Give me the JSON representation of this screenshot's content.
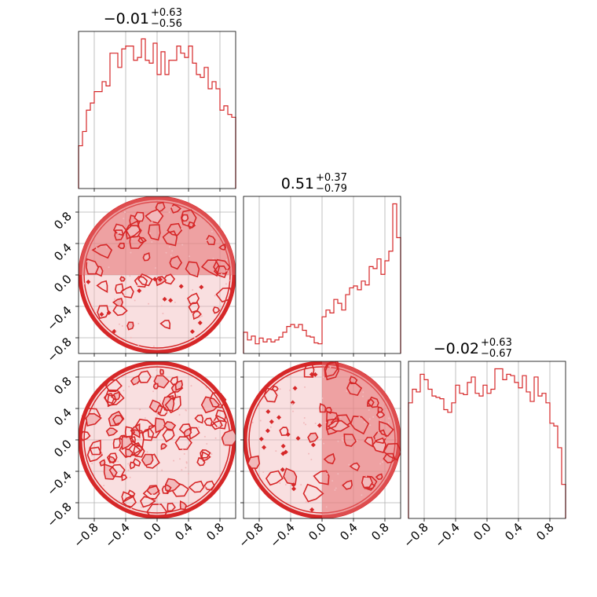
{
  "figure": {
    "colors": {
      "accent": "#d62728",
      "fill_light": "#f2b9bb",
      "fill_mid": "#e56d70",
      "grid": "#b0b0b0"
    }
  },
  "chart_data": {
    "type": "corner",
    "grid": true,
    "variables": [
      {
        "median": "−0.01",
        "plus": "+0.63",
        "minus": "−0.56",
        "range": [
          -1,
          1
        ]
      },
      {
        "median": "0.51",
        "plus": "+0.37",
        "minus": "−0.79",
        "range": [
          -1,
          1
        ]
      },
      {
        "median": "−0.02",
        "plus": "+0.63",
        "minus": "−0.67",
        "range": [
          -1,
          1
        ]
      }
    ],
    "tick_values": [
      -0.8,
      -0.4,
      0.0,
      0.4,
      0.8
    ],
    "tick_labels": [
      "−0.8",
      "−0.4",
      "0.0",
      "0.4",
      "0.8"
    ],
    "histograms": [
      {
        "type": "histogram",
        "variable": 0,
        "bin_edges_range": [
          -1,
          1
        ],
        "counts": [
          0.3,
          0.4,
          0.55,
          0.6,
          0.68,
          0.68,
          0.75,
          0.72,
          0.95,
          0.95,
          0.85,
          0.98,
          1.0,
          1.0,
          0.9,
          0.92,
          1.05,
          0.9,
          0.88,
          1.02,
          0.8,
          0.96,
          0.8,
          0.9,
          0.9,
          1.0,
          0.95,
          0.92,
          1.0,
          0.88,
          0.8,
          0.78,
          0.85,
          0.7,
          0.75,
          0.7,
          0.55,
          0.58,
          0.52,
          0.5
        ]
      },
      {
        "type": "histogram",
        "variable": 1,
        "bin_edges_range": [
          -1,
          1
        ],
        "counts": [
          0.22,
          0.14,
          0.18,
          0.1,
          0.16,
          0.12,
          0.15,
          0.12,
          0.14,
          0.17,
          0.22,
          0.28,
          0.3,
          0.27,
          0.3,
          0.24,
          0.18,
          0.17,
          0.11,
          0.1,
          0.38,
          0.45,
          0.42,
          0.56,
          0.52,
          0.45,
          0.61,
          0.68,
          0.7,
          0.66,
          0.75,
          0.71,
          0.9,
          0.88,
          0.98,
          0.82,
          0.96,
          1.06,
          1.55,
          1.2
        ]
      },
      {
        "type": "histogram",
        "variable": 2,
        "bin_edges_range": [
          -1,
          1
        ],
        "counts": [
          0.85,
          0.95,
          0.93,
          1.06,
          1.02,
          0.95,
          0.9,
          0.89,
          0.88,
          0.8,
          0.78,
          0.85,
          0.98,
          0.92,
          0.91,
          1.0,
          1.04,
          0.92,
          0.9,
          0.98,
          0.92,
          0.95,
          1.1,
          1.1,
          1.02,
          1.06,
          1.05,
          1.0,
          0.96,
          1.05,
          0.93,
          0.86,
          1.04,
          0.9,
          0.92,
          0.85,
          0.7,
          0.68,
          0.52,
          0.25
        ]
      }
    ],
    "contours": [
      {
        "type": "contour",
        "x_variable": 0,
        "y_variable": 1,
        "region": "disk",
        "density": "concentrated at y > 0"
      },
      {
        "type": "contour",
        "x_variable": 0,
        "y_variable": 2,
        "region": "disk",
        "density": "uniform"
      },
      {
        "type": "contour",
        "x_variable": 1,
        "y_variable": 2,
        "region": "disk",
        "density": "concentrated at x > 0"
      }
    ]
  }
}
